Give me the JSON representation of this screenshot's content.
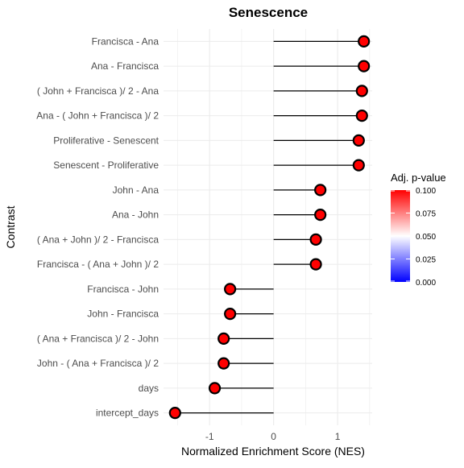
{
  "chart_data": {
    "type": "lollipop",
    "title": "Senescence",
    "xlabel": "Normalized Enrichment Score (NES)",
    "ylabel": "Contrast",
    "xlim": [
      -1.72,
      1.54
    ],
    "xticks": [
      -1,
      0,
      1
    ],
    "xtick_labels": [
      "-1",
      "0",
      "1"
    ],
    "grid": true,
    "categories": [
      "Francisca - Ana",
      "Ana - Francisca",
      "(  John + Francisca )/ 2 - Ana",
      "Ana - ( John + Francisca )/ 2",
      "Proliferative - Senescent",
      "Senescent - Proliferative",
      "John - Ana",
      "Ana - John",
      "(  Ana + John )/ 2 - Francisca",
      "Francisca - ( Ana + John )/ 2",
      "Francisca - John",
      "John - Francisca",
      "(  Ana + Francisca )/ 2 - John",
      "John - ( Ana + Francisca )/ 2",
      "days",
      "intercept_days"
    ],
    "values": [
      1.41,
      1.41,
      1.38,
      1.38,
      1.33,
      1.33,
      0.73,
      0.73,
      0.66,
      0.66,
      -0.68,
      -0.68,
      -0.78,
      -0.78,
      -0.92,
      -1.54
    ],
    "p_values": [
      0.1,
      0.1,
      0.1,
      0.1,
      0.1,
      0.1,
      0.1,
      0.1,
      0.1,
      0.1,
      0.1,
      0.1,
      0.1,
      0.1,
      0.1,
      0.1
    ],
    "legend": {
      "title": "Adj. p-value",
      "position": "right",
      "ticks": [
        "0.100",
        "0.075",
        "0.050",
        "0.025",
        "0.000"
      ],
      "range": [
        0.0,
        0.1
      ],
      "colors": {
        "low": "#0000ff",
        "mid": "#ffffff",
        "high": "#ff0000"
      }
    },
    "colors": {
      "point_fill": "#ff0000",
      "point_stroke": "#000000",
      "segment": "#000000",
      "grid": "#ebebeb"
    }
  }
}
